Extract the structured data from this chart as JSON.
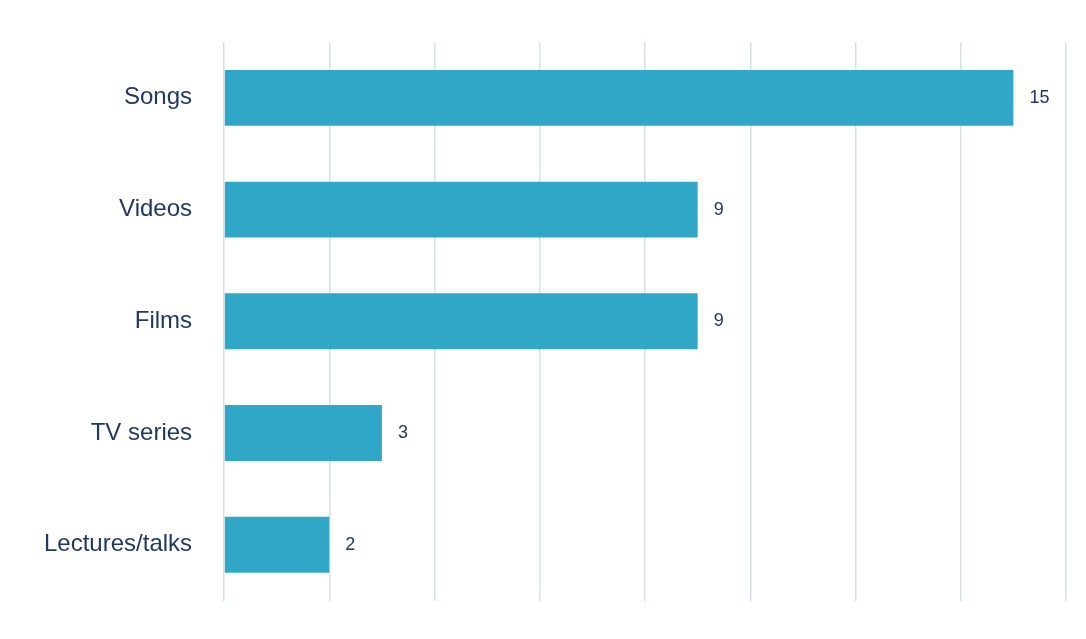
{
  "chart_data": {
    "type": "bar",
    "orientation": "horizontal",
    "categories": [
      "Songs",
      "Videos",
      "Films",
      "TV series",
      "Lectures/talks"
    ],
    "values": [
      15,
      9,
      9,
      3,
      2
    ],
    "color": "#31a7c7",
    "data_labels": true,
    "grid": "x",
    "tick_labels": "y",
    "xlim": [
      0,
      16
    ],
    "xticks": [
      {
        "value": 0,
        "label": null
      },
      {
        "value": 2,
        "label": null
      },
      {
        "value": 4,
        "label": null
      },
      {
        "value": 6,
        "label": null
      },
      {
        "value": 8,
        "label": null
      },
      {
        "value": 10,
        "label": null
      },
      {
        "value": 12,
        "label": null
      },
      {
        "value": 14,
        "label": null
      },
      {
        "value": 16,
        "label": null
      }
    ]
  }
}
